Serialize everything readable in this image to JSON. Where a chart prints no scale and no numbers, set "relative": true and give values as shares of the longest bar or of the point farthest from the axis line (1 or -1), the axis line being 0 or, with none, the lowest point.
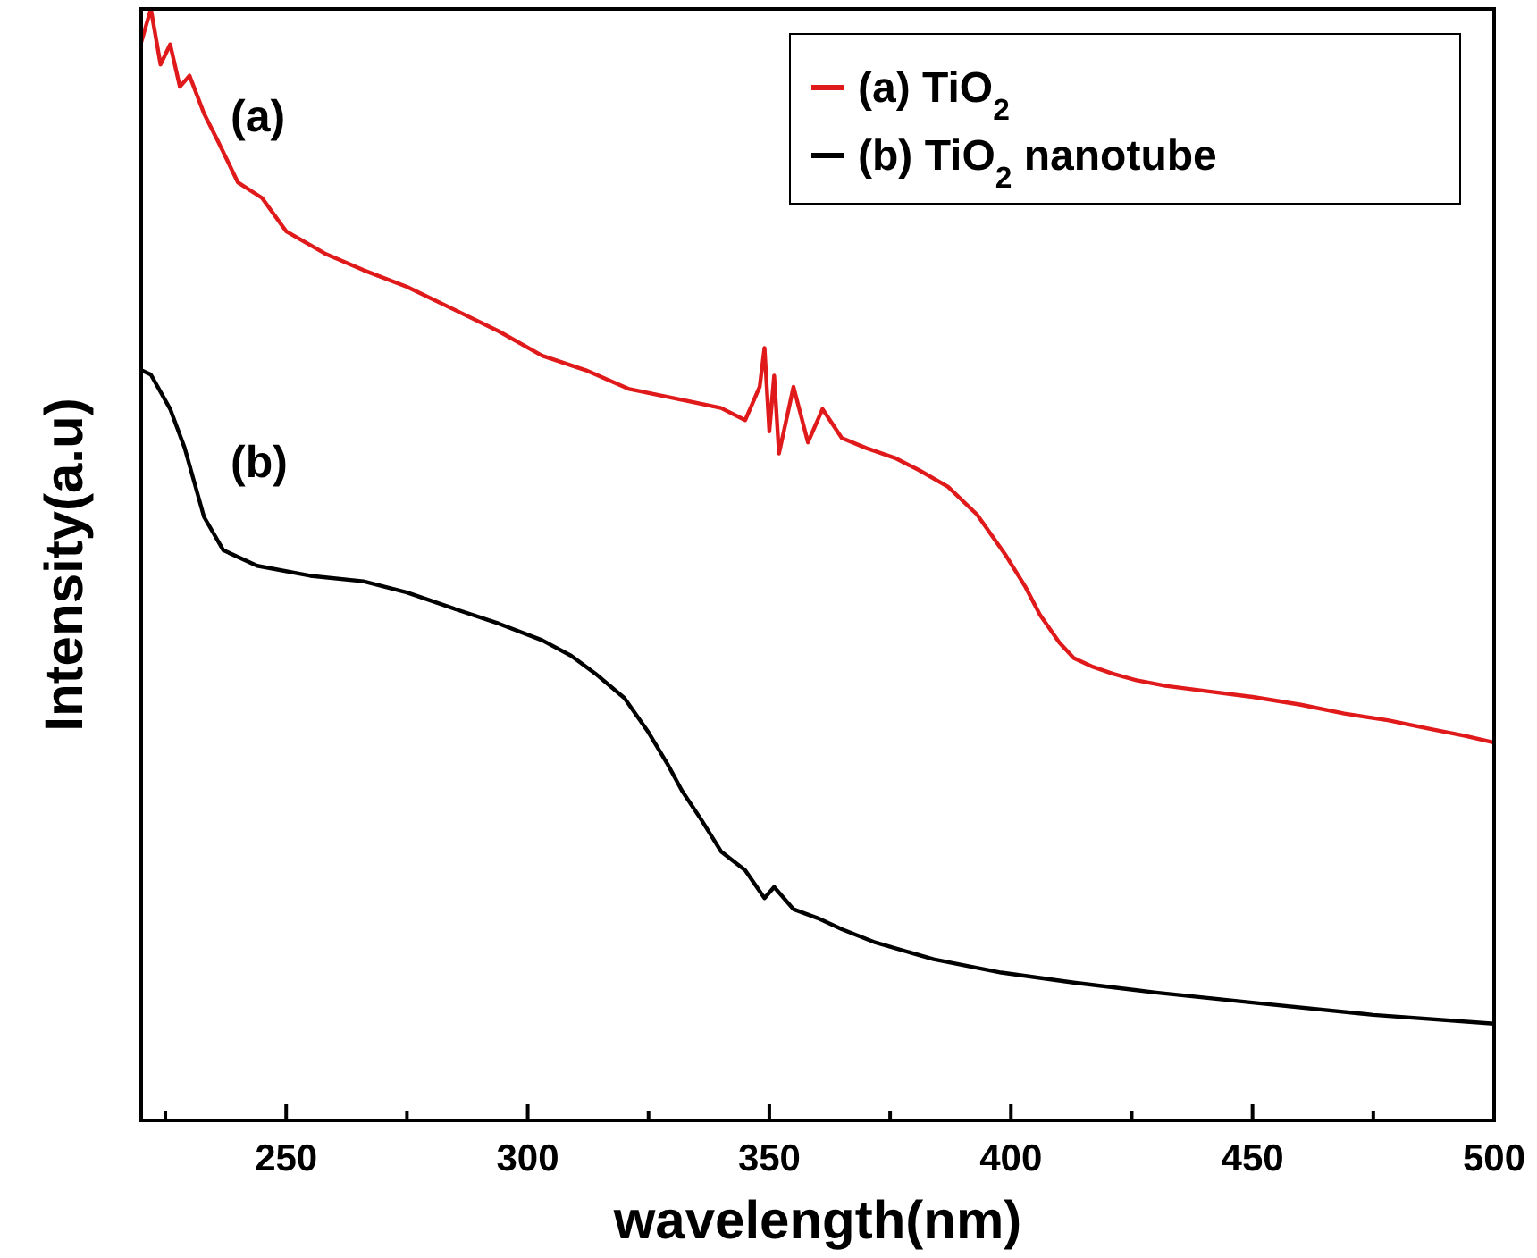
{
  "chart_data": {
    "type": "line",
    "xlabel": "wavelength(nm)",
    "ylabel": "Intensity(a.u)",
    "relative": true,
    "xlim": [
      220,
      500
    ],
    "xticks": [
      {
        "value": 225,
        "label": null
      },
      250,
      {
        "value": 275,
        "label": null
      },
      300,
      {
        "value": 325,
        "label": null
      },
      350,
      {
        "value": 375,
        "label": null
      },
      400,
      {
        "value": 425,
        "label": null
      },
      450,
      {
        "value": 475,
        "label": null
      },
      500
    ],
    "legend": "top right",
    "grid": false,
    "line_style": "solid",
    "annotations": [
      "(a)",
      "(b)"
    ],
    "series": [
      {
        "name": "(a) TiO$_{2}$",
        "color": "#e0191a",
        "x": [
          220,
          222,
          224,
          226,
          228,
          230,
          233,
          236,
          240,
          245,
          250,
          258,
          266,
          275,
          285,
          294,
          303,
          312,
          321,
          330,
          340,
          345,
          348,
          349,
          350,
          351,
          352,
          355,
          358,
          361,
          365,
          370,
          376,
          381,
          387,
          393,
          399,
          403,
          406,
          410,
          413,
          417,
          421,
          426,
          432,
          441,
          450,
          460,
          469,
          478,
          487,
          494,
          500
        ],
        "values": [
          0.97,
          1.0,
          0.95,
          0.968,
          0.93,
          0.94,
          0.906,
          0.88,
          0.844,
          0.83,
          0.8,
          0.78,
          0.765,
          0.75,
          0.729,
          0.71,
          0.688,
          0.675,
          0.658,
          0.65,
          0.641,
          0.63,
          0.66,
          0.695,
          0.62,
          0.67,
          0.6,
          0.66,
          0.61,
          0.64,
          0.614,
          0.605,
          0.596,
          0.585,
          0.57,
          0.545,
          0.508,
          0.48,
          0.455,
          0.43,
          0.416,
          0.408,
          0.402,
          0.396,
          0.391,
          0.386,
          0.381,
          0.374,
          0.366,
          0.36,
          0.352,
          0.346,
          0.34
        ]
      },
      {
        "name": "(b) TiO$_{2}$ nanotube",
        "color": "#000000",
        "x": [
          220,
          222,
          226,
          229,
          233,
          237,
          244,
          255,
          266,
          275,
          285,
          294,
          303,
          309,
          314,
          320,
          325,
          329,
          332,
          336,
          340,
          345,
          349,
          351,
          355,
          360,
          365,
          372,
          384,
          398,
          413,
          430,
          450,
          475,
          500
        ],
        "values": [
          0.675,
          0.671,
          0.64,
          0.605,
          0.543,
          0.513,
          0.499,
          0.49,
          0.485,
          0.475,
          0.46,
          0.447,
          0.432,
          0.418,
          0.402,
          0.38,
          0.349,
          0.32,
          0.296,
          0.27,
          0.242,
          0.225,
          0.2,
          0.21,
          0.19,
          0.182,
          0.172,
          0.16,
          0.145,
          0.133,
          0.124,
          0.115,
          0.106,
          0.095,
          0.087
        ]
      }
    ]
  }
}
